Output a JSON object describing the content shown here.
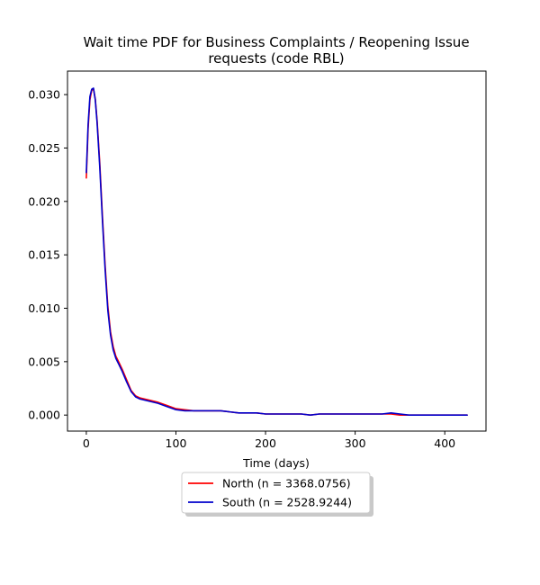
{
  "chart_data": {
    "type": "line",
    "title_lines": [
      "Wait time PDF for Business Complaints / Reopening Issue",
      "requests (code RBL)"
    ],
    "xlabel": "Time (days)",
    "ylabel": "",
    "xlim": [
      -21,
      446
    ],
    "ylim": [
      -0.0015,
      0.0322
    ],
    "xticks": [
      0,
      100,
      200,
      300,
      400
    ],
    "xtick_labels": [
      "0",
      "100",
      "200",
      "300",
      "400"
    ],
    "yticks": [
      0.0,
      0.005,
      0.01,
      0.015,
      0.02,
      0.025,
      0.03
    ],
    "ytick_labels": [
      "0.000",
      "0.005",
      "0.010",
      "0.015",
      "0.020",
      "0.025",
      "0.030"
    ],
    "grid": false,
    "legend_position": "below-center",
    "series": [
      {
        "name": "North (n = 3368.0756)",
        "color": "#ff0000",
        "x": [
          0,
          2,
          4,
          6,
          8,
          10,
          12,
          15,
          18,
          21,
          24,
          27,
          30,
          33,
          36,
          40,
          45,
          50,
          55,
          60,
          70,
          80,
          90,
          100,
          110,
          120,
          130,
          140,
          150,
          160,
          170,
          180,
          190,
          200,
          210,
          220,
          230,
          240,
          250,
          260,
          270,
          280,
          290,
          300,
          310,
          320,
          330,
          340,
          350,
          360,
          380,
          400,
          425
        ],
        "y": [
          0.0222,
          0.0268,
          0.0295,
          0.0304,
          0.0305,
          0.0296,
          0.0276,
          0.0236,
          0.0186,
          0.014,
          0.0102,
          0.0078,
          0.0064,
          0.0055,
          0.005,
          0.0043,
          0.0033,
          0.0023,
          0.0018,
          0.0016,
          0.0014,
          0.0012,
          0.0009,
          0.0006,
          0.0005,
          0.0004,
          0.0004,
          0.0004,
          0.0004,
          0.0003,
          0.0002,
          0.0002,
          0.0002,
          0.0001,
          0.0001,
          0.0001,
          0.0001,
          0.0001,
          0.0,
          0.0001,
          0.0001,
          0.0001,
          0.0001,
          0.0001,
          0.0001,
          0.0001,
          0.0001,
          0.0001,
          0.0,
          0.0,
          0.0,
          0.0,
          0.0
        ]
      },
      {
        "name": "South (n = 2528.9244)",
        "color": "#0000cc",
        "x": [
          0,
          2,
          4,
          6,
          8,
          10,
          12,
          15,
          18,
          21,
          24,
          27,
          30,
          33,
          36,
          40,
          45,
          50,
          55,
          60,
          70,
          80,
          90,
          100,
          110,
          120,
          130,
          140,
          150,
          160,
          170,
          180,
          190,
          200,
          210,
          220,
          230,
          240,
          250,
          260,
          270,
          280,
          290,
          300,
          310,
          320,
          330,
          340,
          350,
          360,
          380,
          400,
          425
        ],
        "y": [
          0.0227,
          0.0272,
          0.0298,
          0.0305,
          0.0306,
          0.0295,
          0.0274,
          0.0232,
          0.0182,
          0.0136,
          0.0098,
          0.0075,
          0.0061,
          0.0053,
          0.0048,
          0.0041,
          0.0031,
          0.0022,
          0.0017,
          0.0015,
          0.0013,
          0.0011,
          0.0008,
          0.0005,
          0.0004,
          0.0004,
          0.0004,
          0.0004,
          0.0004,
          0.0003,
          0.0002,
          0.0002,
          0.0002,
          0.0001,
          0.0001,
          0.0001,
          0.0001,
          0.0001,
          0.0,
          0.0001,
          0.0001,
          0.0001,
          0.0001,
          0.0001,
          0.0001,
          0.0001,
          0.0001,
          0.0002,
          0.0001,
          0.0,
          0.0,
          0.0,
          0.0
        ]
      }
    ]
  }
}
